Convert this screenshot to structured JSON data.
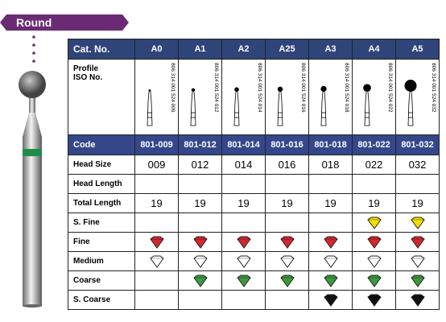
{
  "badge": "Round",
  "table": {
    "header": [
      "Cat. No.",
      "A0",
      "A1",
      "A2",
      "A25",
      "A3",
      "A4",
      "A5"
    ],
    "profile_label": [
      "Profile",
      "ISO No."
    ],
    "iso": [
      "806 314 001 524 009",
      "806 314 001 524 012",
      "806 314 001 524 014",
      "806 314 001 524 016",
      "806 314 001 524 018",
      "806 314 001 524 022",
      "806 314 001 524 032"
    ],
    "code_label": "Code",
    "codes": [
      "801-009",
      "801-012",
      "801-014",
      "801-016",
      "801-018",
      "801-022",
      "801-032"
    ],
    "rows": [
      {
        "label": "Head Size",
        "cells": [
          "009",
          "012",
          "014",
          "016",
          "018",
          "022",
          "032"
        ]
      },
      {
        "label": "Head Length"
      },
      {
        "label": "Total Length",
        "cells": [
          "19",
          "19",
          "19",
          "19",
          "19",
          "19",
          "19"
        ]
      }
    ],
    "grits": [
      {
        "label": "S. Fine",
        "color": "#f5e000",
        "marks": [
          false,
          false,
          false,
          false,
          false,
          true,
          true
        ]
      },
      {
        "label": "Fine",
        "color": "#d4282e",
        "marks": [
          true,
          true,
          true,
          true,
          true,
          true,
          true
        ]
      },
      {
        "label": "Medium",
        "color": "#ffffff",
        "marks": [
          true,
          true,
          true,
          true,
          true,
          true,
          true
        ]
      },
      {
        "label": "Coarse",
        "color": "#3c9a3c",
        "marks": [
          false,
          true,
          true,
          true,
          true,
          true,
          true
        ]
      },
      {
        "label": "S. Coarse",
        "color": "#111111",
        "marks": [
          false,
          false,
          false,
          false,
          true,
          true,
          true
        ]
      }
    ]
  }
}
